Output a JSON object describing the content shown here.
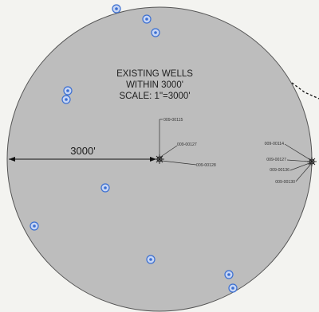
{
  "title": {
    "line1": "EXISTING WELLS",
    "line2": "WITHIN 3000'",
    "line3": "SCALE: 1\"=3000'"
  },
  "radius_label": "3000'",
  "center_site": {
    "labels": [
      "009-00115",
      "009-00127",
      "009-00128"
    ]
  },
  "east_site": {
    "labels": [
      "009-00114",
      "009-00127",
      "009-00136",
      "009-00130"
    ]
  },
  "colors": {
    "circle_fill": "#bdbdbd",
    "circle_stroke": "#555555",
    "well_marker": "#3b6fd1",
    "background": "#f3f3f0"
  }
}
